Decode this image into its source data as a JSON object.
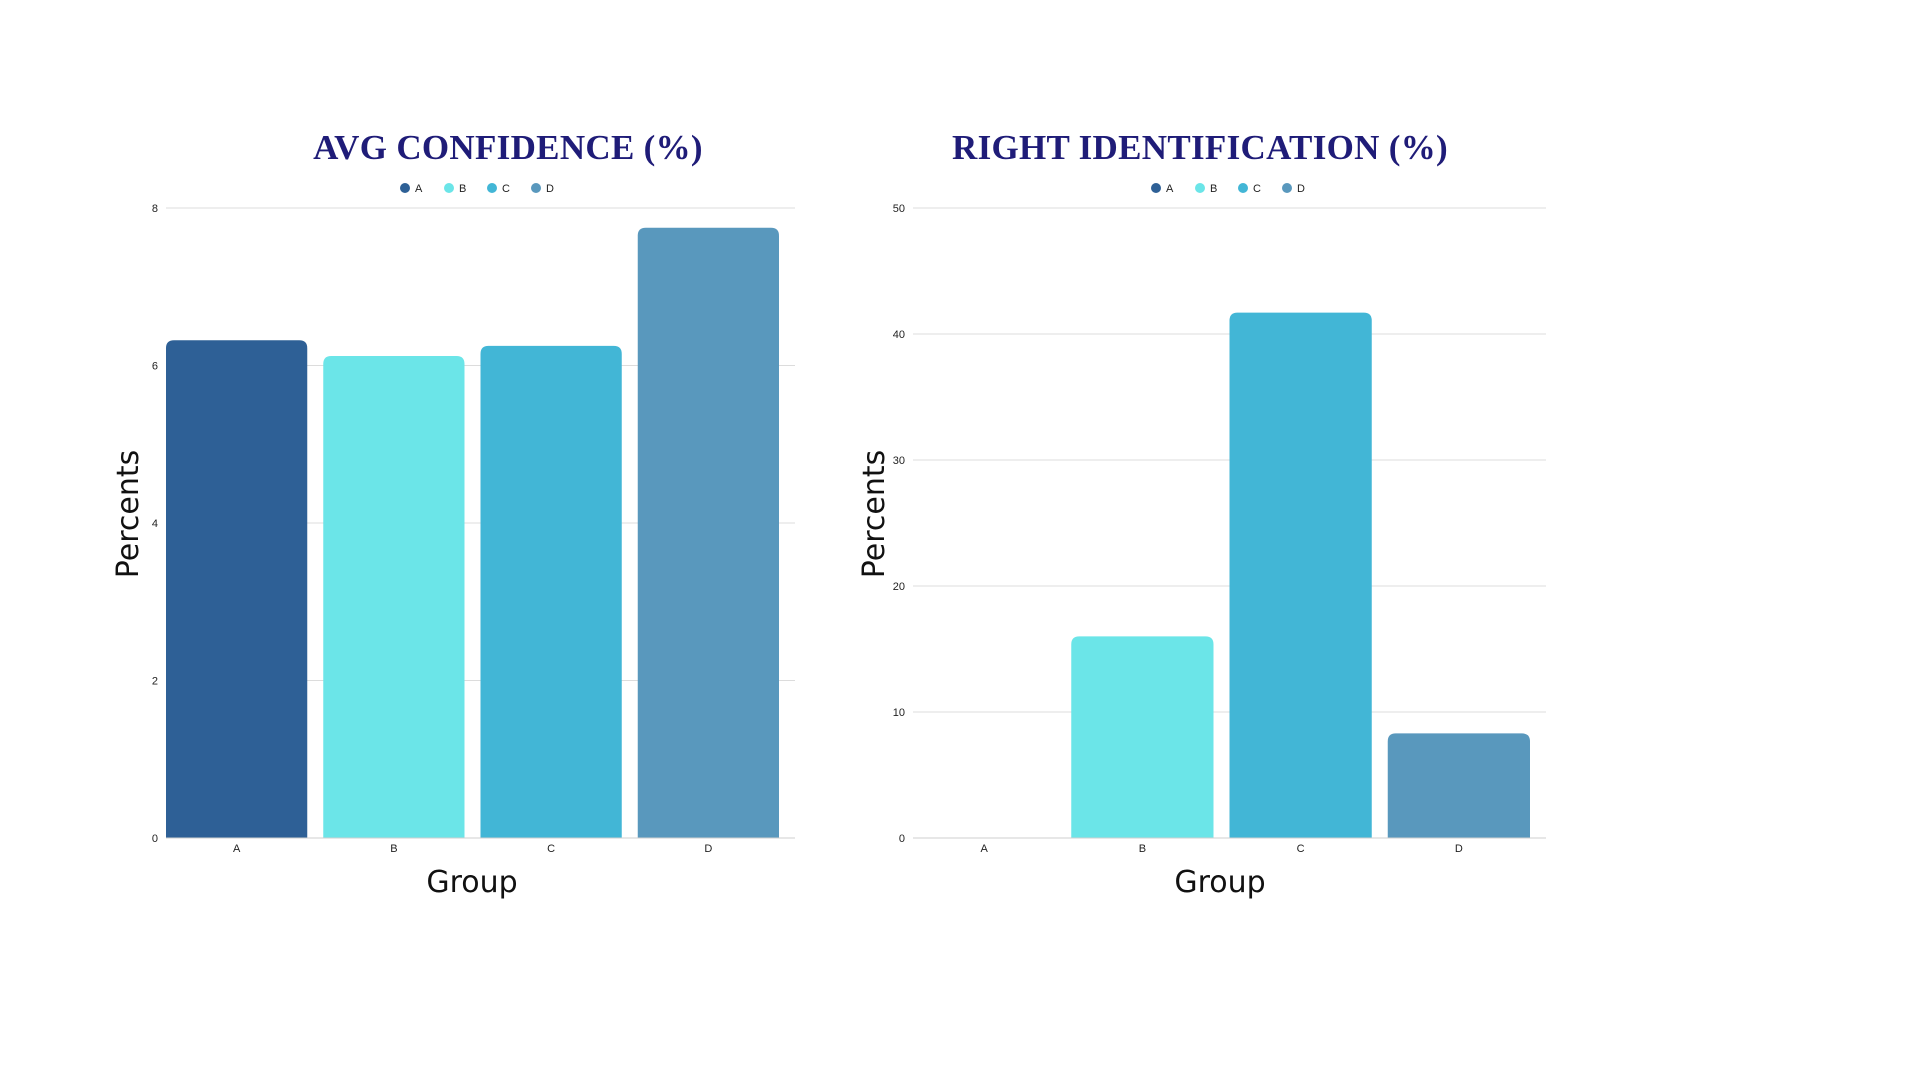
{
  "chart_data": [
    {
      "type": "bar",
      "title": "AVG CONFIDENCE (%)",
      "xlabel": "Group",
      "ylabel": "Percents",
      "categories": [
        "A",
        "B",
        "C",
        "D"
      ],
      "values": [
        6.32,
        6.12,
        6.25,
        7.75
      ],
      "ylim": [
        0,
        8
      ],
      "yticks": [
        "0",
        "2",
        "4",
        "6",
        "8"
      ],
      "legend": [
        "A",
        "B",
        "C",
        "D"
      ],
      "legend_position": "top-center",
      "grid": true
    },
    {
      "type": "bar",
      "title": "RIGHT IDENTIFICATION (%)",
      "xlabel": "Group",
      "ylabel": "Percents",
      "categories": [
        "A",
        "B",
        "C",
        "D"
      ],
      "values": [
        0,
        16,
        41.7,
        8.3
      ],
      "ylim": [
        0,
        50
      ],
      "yticks": [
        "0",
        "10",
        "20",
        "30",
        "40",
        "50"
      ],
      "legend": [
        "A",
        "B",
        "C",
        "D"
      ],
      "legend_position": "top-center",
      "grid": true
    }
  ],
  "colors": {
    "A": "#2e6096",
    "B": "#6be5e8",
    "C": "#42b6d6",
    "D": "#5998bd"
  }
}
